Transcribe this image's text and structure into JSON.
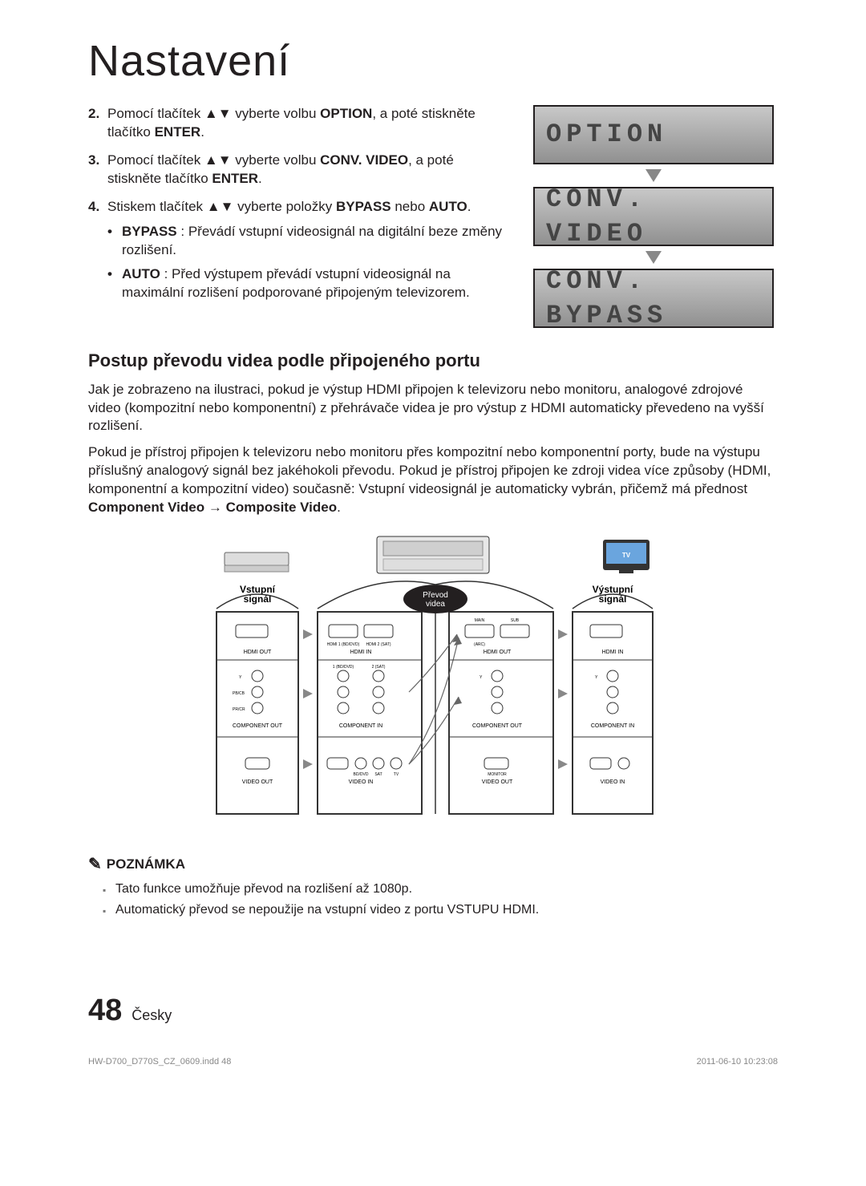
{
  "title": "Nastavení",
  "steps": [
    {
      "num": "2.",
      "parts": [
        "Pomocí tlačítek ▲▼ vyberte volbu ",
        "OPTION",
        ", a poté stiskněte tlačítko ",
        "ENTER",
        "."
      ]
    },
    {
      "num": "3.",
      "parts": [
        "Pomocí tlačítek ▲▼ vyberte volbu ",
        "CONV. VIDEO",
        ", a poté stiskněte tlačítko ",
        "ENTER",
        "."
      ]
    },
    {
      "num": "4.",
      "parts": [
        "Stiskem tlačítek ▲▼ vyberte položky ",
        "BYPASS",
        " nebo ",
        "AUTO",
        "."
      ],
      "sub": [
        {
          "label": "BYPASS",
          "text": " : Převádí vstupní videosignál na digitální beze změny rozlišení."
        },
        {
          "label": "AUTO",
          "text": " : Před výstupem převádí vstupní videosignál na maximální rozlišení podporované připojeným televizorem."
        }
      ]
    }
  ],
  "lcd": {
    "screens": [
      "OPTION",
      "CONV. VIDEO",
      "CONV. BYPASS"
    ]
  },
  "section_heading": "Postup převodu videa podle připojeného portu",
  "para1": "Jak je zobrazeno na ilustraci, pokud je výstup HDMI připojen k televizoru nebo monitoru, analogové zdrojové video (kompozitní nebo komponentní) z přehrávače videa je pro výstup z HDMI automaticky převedeno na vyšší rozlišení.",
  "para2_a": "Pokud je přístroj připojen k televizoru nebo monitoru přes kompozitní nebo komponentní porty, bude na výstupu příslušný analogový signál bez jakéhokoli převodu. Pokud je přístroj připojen ke zdroji videa více způsoby (HDMI, komponentní a kompozitní video) současně: Vstupní videosignál je automaticky vybrán, přičemž má přednost ",
  "para2_b": "Component Video → Composite Video",
  "para2_c": ".",
  "diagram": {
    "tv_label": "TV",
    "input_label": "Vstupní\nsignál",
    "output_label": "Výstupní\nsignál",
    "convert_label": "Převod\nvidea",
    "labels": {
      "hdmi_out": "HDMI OUT",
      "hdmi_in": "HDMI IN",
      "component_out": "COMPONENT OUT",
      "component_in": "COMPONENT IN",
      "video_out": "VIDEO OUT",
      "video_in": "VIDEO IN"
    },
    "small": {
      "main": "MAIN",
      "sub": "SUB",
      "arc": "(ARC)",
      "hdmi1": "HDMI 1\n(BD/DVD)",
      "hdmi2": "HDMI 2\n(SAT)",
      "one": "1\n(BD/DVD)",
      "two": "2\n(SAT)",
      "bddvd": "BD/DVD",
      "sat": "SAT",
      "tv": "TV",
      "monitor": "MONITOR",
      "y": "Y",
      "pb": "PB/CB",
      "pr": "PR/CR"
    }
  },
  "note": {
    "heading": "POZNÁMKA",
    "items": [
      "Tato funkce umožňuje převod na rozlišení až 1080p.",
      "Automatický převod se nepoužije na vstupní video z portu VSTUPU HDMI."
    ]
  },
  "footer": {
    "page": "48",
    "lang": "Česky"
  },
  "printline": {
    "left": "HW-D700_D770S_CZ_0609.indd   48",
    "right": "2011-06-10   10:23:08"
  }
}
